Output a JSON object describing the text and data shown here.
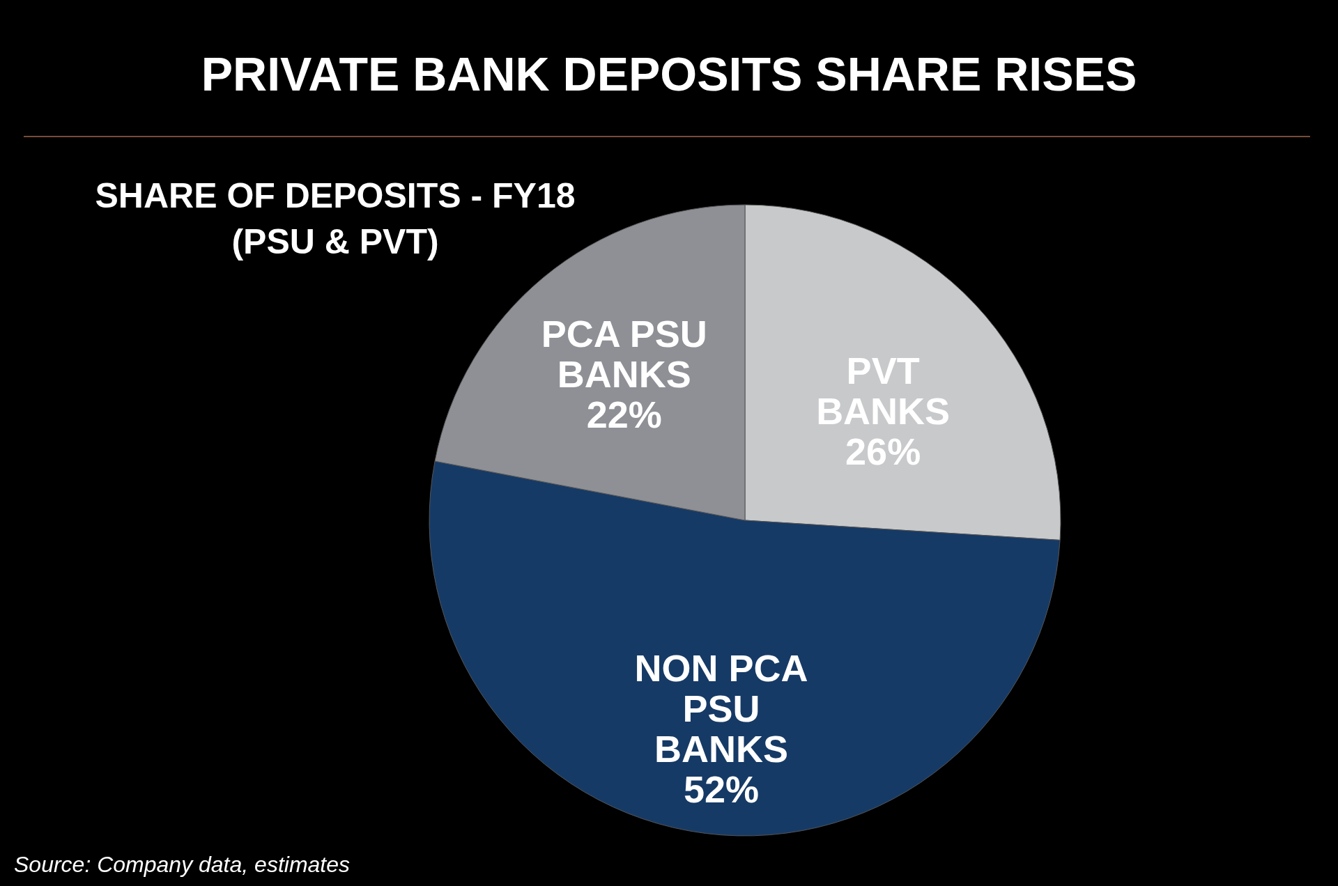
{
  "chart_data": {
    "type": "pie",
    "title": "PRIVATE BANK DEPOSITS SHARE RISES",
    "subtitle": "SHARE OF DEPOSITS - FY18 (PSU & PVT)",
    "categories": [
      "PVT BANKS",
      "NON PCA PSU BANKS",
      "PCA PSU BANKS"
    ],
    "values": [
      26,
      52,
      22
    ],
    "value_labels": [
      "26%",
      "52%",
      "22%"
    ],
    "colors": [
      "#c8c9cb",
      "#163a66",
      "#8e9095"
    ],
    "annotations": [
      "Source: Company data, estimates"
    ]
  }
}
